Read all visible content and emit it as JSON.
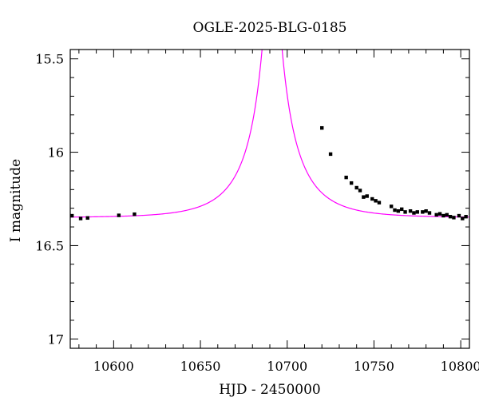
{
  "chart_data": {
    "type": "scatter",
    "title": "OGLE-2025-BLG-0185",
    "xlabel": "HJD - 2450000",
    "ylabel": "I magnitude",
    "xlim": [
      10575,
      10805
    ],
    "ylim": [
      17.05,
      15.45
    ],
    "y_inverted": true,
    "x_ticks": [
      10600,
      10650,
      10700,
      10750,
      10800
    ],
    "x_tick_labels": [
      "10600",
      "10650",
      "10700",
      "10750",
      "10800"
    ],
    "y_ticks": [
      15.5,
      16,
      16.5,
      17
    ],
    "y_tick_labels": [
      "15.5",
      "16",
      "16.5",
      "17"
    ],
    "grid": false,
    "series": [
      {
        "kind": "points",
        "color": "#000000",
        "error": 0.006,
        "x": [
          10576,
          10581,
          10585,
          10603,
          10612,
          10720,
          10725,
          10734,
          10737,
          10740,
          10742,
          10744,
          10746,
          10749,
          10751,
          10753,
          10760,
          10762,
          10764,
          10766,
          10768,
          10771,
          10773,
          10775,
          10778,
          10780,
          10782,
          10786,
          10788,
          10790,
          10792,
          10794,
          10796,
          10799,
          10801,
          10803
        ],
        "y": [
          16.34,
          16.355,
          16.352,
          16.338,
          16.332,
          15.87,
          16.01,
          16.135,
          16.165,
          16.19,
          16.205,
          16.24,
          16.235,
          16.25,
          16.26,
          16.27,
          16.29,
          16.31,
          16.315,
          16.305,
          16.32,
          16.315,
          16.325,
          16.32,
          16.32,
          16.315,
          16.325,
          16.335,
          16.33,
          16.34,
          16.335,
          16.345,
          16.35,
          16.34,
          16.355,
          16.345
        ]
      },
      {
        "kind": "model",
        "color": "#ff00ff",
        "t0": 10691.3,
        "tE": 30,
        "u0": 0.1,
        "base_mag": 16.35,
        "fs": 0.35
      }
    ]
  }
}
